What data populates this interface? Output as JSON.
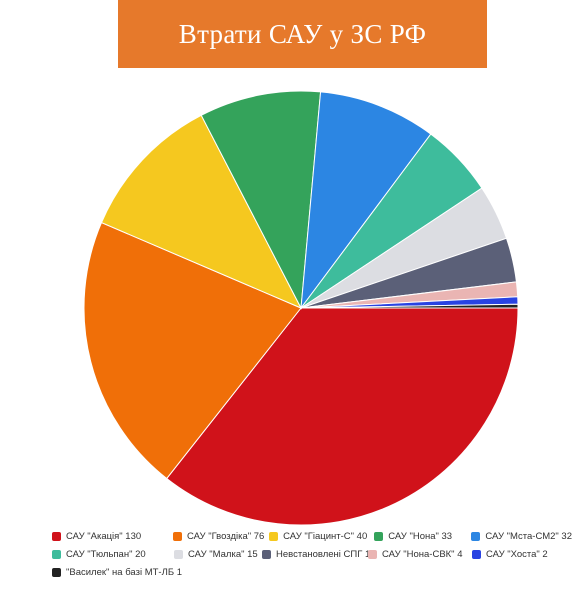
{
  "chart_data": {
    "type": "pie",
    "title": "Втрати САУ у ЗС РФ",
    "legend_position": "bottom",
    "start_angle_deg": 0,
    "direction": "clockwise",
    "slices": [
      {
        "label": "САУ \"Акація\" 130",
        "value": 130,
        "color": "#d0121a"
      },
      {
        "label": "САУ \"Гвоздіка\" 76",
        "value": 76,
        "color": "#f06f08"
      },
      {
        "label": "САУ \"Гіацинт-С\" 40",
        "value": 40,
        "color": "#f5c81f"
      },
      {
        "label": "САУ \"Нона\" 33",
        "value": 33,
        "color": "#34a35b"
      },
      {
        "label": "САУ \"Мста-СМ2\" 32",
        "value": 32,
        "color": "#2c86e3"
      },
      {
        "label": "САУ \"Тюльпан\" 20",
        "value": 20,
        "color": "#3ebc9c"
      },
      {
        "label": "САУ \"Малка\" 15",
        "value": 15,
        "color": "#dcdde2"
      },
      {
        "label": "Невстановлені СПГ 12",
        "value": 12,
        "color": "#5b6078"
      },
      {
        "label": "САУ \"Нона-СВК\" 4",
        "value": 4,
        "color": "#eab5b3"
      },
      {
        "label": "САУ \"Хоста\" 2",
        "value": 2,
        "color": "#2943e2"
      },
      {
        "label": "\"Василек\" на базі МТ-ЛБ 1",
        "value": 1,
        "color": "#222222"
      }
    ]
  }
}
